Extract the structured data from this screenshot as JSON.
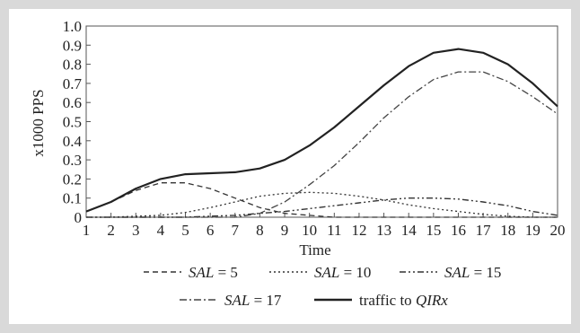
{
  "chart_data": {
    "type": "line",
    "xlabel": "Time",
    "ylabel": "x1000 PPS",
    "x": [
      1,
      2,
      3,
      4,
      5,
      6,
      7,
      8,
      9,
      10,
      11,
      12,
      13,
      14,
      15,
      16,
      17,
      18,
      19,
      20
    ],
    "xlim": [
      1,
      20
    ],
    "ylim": [
      0,
      1.0
    ],
    "y_ticks": [
      "0",
      "0.1",
      "0.2",
      "0.3",
      "0.4",
      "0.5",
      "0.6",
      "0.7",
      "0.8",
      "0.9",
      "1.0"
    ],
    "x_ticks": [
      "1",
      "2",
      "3",
      "4",
      "5",
      "6",
      "7",
      "8",
      "9",
      "10",
      "11",
      "12",
      "13",
      "14",
      "15",
      "16",
      "17",
      "18",
      "19",
      "20"
    ],
    "grid": false,
    "legend_position": "bottom",
    "series": [
      {
        "id": "sal5",
        "legend_var": "SAL",
        "legend_rest": " = 5",
        "style": "dashed",
        "color": "#333333",
        "values": [
          0.03,
          0.08,
          0.14,
          0.18,
          0.18,
          0.15,
          0.1,
          0.05,
          0.02,
          0.01,
          0.0,
          0.0,
          0.0,
          0.0,
          0.0,
          0.0,
          0.0,
          0.0,
          0.0,
          0.0
        ]
      },
      {
        "id": "sal10",
        "legend_var": "SAL",
        "legend_rest": " = 10",
        "style": "dotted",
        "color": "#333333",
        "values": [
          0.0,
          0.0,
          0.005,
          0.01,
          0.025,
          0.05,
          0.08,
          0.11,
          0.125,
          0.13,
          0.125,
          0.11,
          0.09,
          0.065,
          0.045,
          0.03,
          0.015,
          0.005,
          0.0,
          0.0
        ]
      },
      {
        "id": "sal15",
        "legend_var": "SAL",
        "legend_rest": " = 15",
        "style": "dashdotdot",
        "color": "#333333",
        "values": [
          0.0,
          0.0,
          0.0,
          0.0,
          0.0,
          0.005,
          0.01,
          0.02,
          0.03,
          0.045,
          0.06,
          0.075,
          0.09,
          0.1,
          0.1,
          0.095,
          0.08,
          0.06,
          0.03,
          0.01
        ]
      },
      {
        "id": "sal17",
        "legend_var": "SAL",
        "legend_rest": " = 17",
        "style": "dashdot",
        "color": "#444444",
        "values": [
          0.0,
          0.0,
          0.0,
          0.0,
          0.0,
          0.0,
          0.0,
          0.02,
          0.08,
          0.17,
          0.27,
          0.39,
          0.52,
          0.63,
          0.72,
          0.76,
          0.76,
          0.71,
          0.63,
          0.54
        ]
      },
      {
        "id": "traffic",
        "legend_plain": "traffic to ",
        "legend_var": "QIRx",
        "style": "solid",
        "color": "#222222",
        "values": [
          0.03,
          0.08,
          0.15,
          0.2,
          0.225,
          0.23,
          0.235,
          0.255,
          0.3,
          0.375,
          0.47,
          0.58,
          0.69,
          0.79,
          0.86,
          0.88,
          0.86,
          0.8,
          0.7,
          0.58
        ]
      }
    ]
  }
}
